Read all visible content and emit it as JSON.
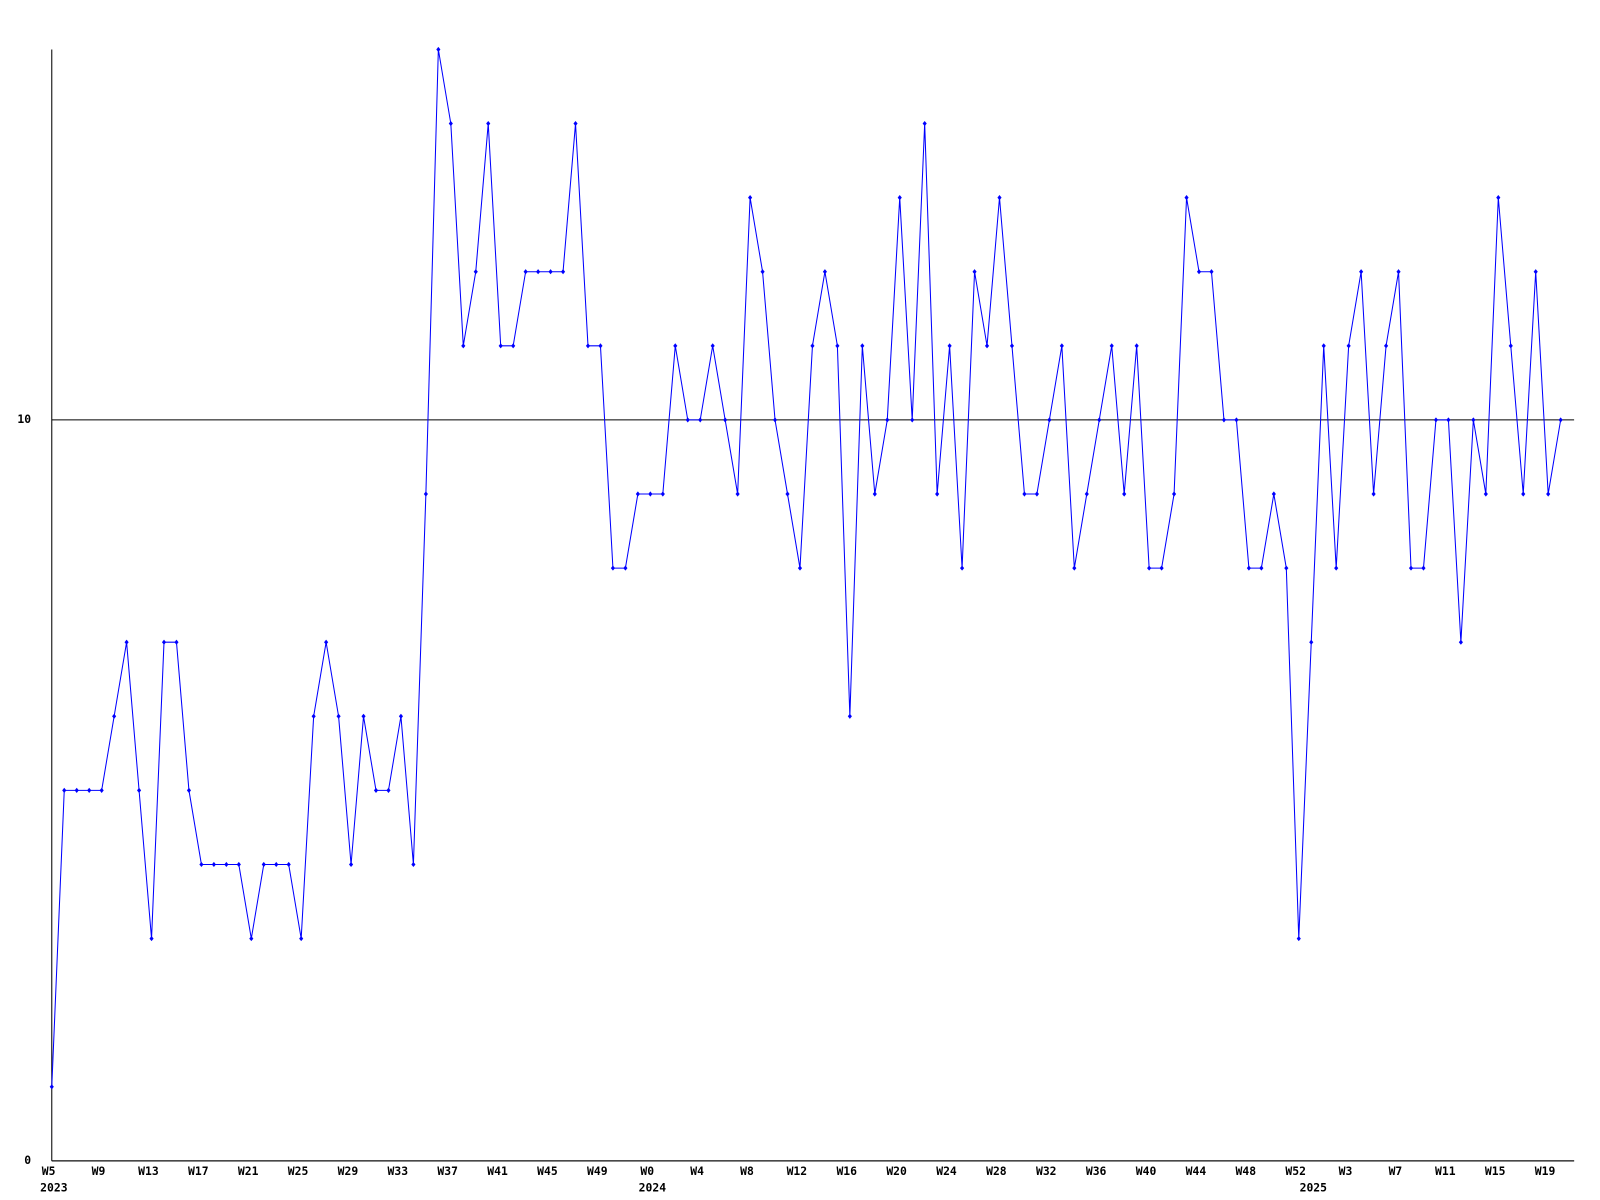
{
  "chart_data": {
    "type": "line",
    "categories": [
      "W5",
      null,
      null,
      null,
      "W9",
      null,
      null,
      null,
      "W13",
      null,
      null,
      null,
      "W17",
      null,
      null,
      null,
      "W21",
      null,
      null,
      null,
      "W25",
      null,
      null,
      null,
      "W29",
      null,
      null,
      null,
      "W33",
      null,
      null,
      null,
      "W37",
      null,
      null,
      null,
      "W41",
      null,
      null,
      null,
      "W45",
      null,
      null,
      null,
      "W49",
      null,
      null,
      null,
      "W0",
      null,
      null,
      null,
      "W4",
      null,
      null,
      null,
      "W8",
      null,
      null,
      null,
      "W12",
      null,
      null,
      null,
      "W16",
      null,
      null,
      null,
      "W20",
      null,
      null,
      null,
      "W24",
      null,
      null,
      null,
      "W28",
      null,
      null,
      null,
      "W32",
      null,
      null,
      null,
      "W36",
      null,
      null,
      null,
      "W40",
      null,
      null,
      null,
      "W44",
      null,
      null,
      null,
      "W48",
      null,
      null,
      null,
      "W52",
      null,
      null,
      null,
      "W3",
      null,
      null,
      null,
      "W7",
      null,
      null,
      null,
      "W11",
      null,
      null,
      null,
      "W15",
      null,
      null,
      null,
      "W19",
      null
    ],
    "years": [
      {
        "label": "2023",
        "first_category": 0
      },
      {
        "label": "2024",
        "first_category": 48
      },
      {
        "label": "2025",
        "first_category": 101
      }
    ],
    "series": [
      {
        "color": "#0000ff",
        "values": [
          1,
          5,
          5,
          5,
          5,
          6,
          7,
          5,
          3,
          7,
          7,
          5,
          4,
          4,
          4,
          4,
          3,
          4,
          4,
          4,
          3,
          6,
          7,
          6,
          4,
          6,
          5,
          5,
          6,
          4,
          9,
          15,
          14,
          11,
          12,
          14,
          11,
          11,
          12,
          12,
          12,
          12,
          14,
          11,
          11,
          8,
          8,
          9,
          9,
          9,
          11,
          10,
          10,
          11,
          10,
          9,
          13,
          12,
          10,
          9,
          8,
          11,
          12,
          11,
          6,
          11,
          9,
          10,
          13,
          10,
          14,
          9,
          11,
          8,
          12,
          11,
          13,
          11,
          9,
          9,
          10,
          11,
          8,
          9,
          10,
          11,
          9,
          11,
          8,
          8,
          9,
          13,
          12,
          12,
          10,
          10,
          8,
          8,
          9,
          8,
          3,
          7,
          11,
          8,
          11,
          12,
          9,
          11,
          12,
          8,
          8,
          10,
          10,
          7,
          10,
          9,
          13,
          11,
          9,
          12,
          9,
          10
        ]
      }
    ],
    "ylim": [
      0,
      15
    ],
    "yticks": [
      0,
      10
    ],
    "grid": true
  }
}
